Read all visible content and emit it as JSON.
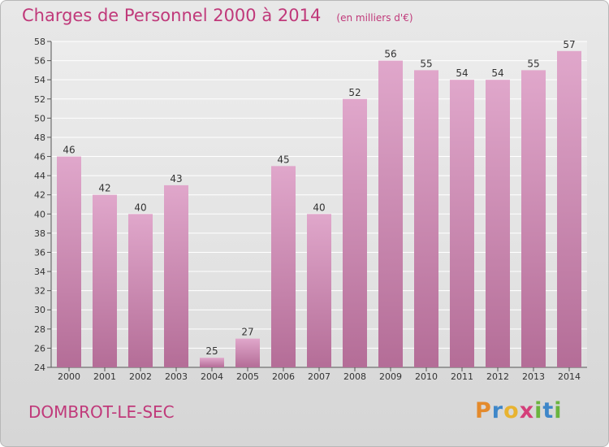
{
  "header": {
    "title": "Charges de Personnel 2000 à 2014",
    "subtitle": "(en milliers d'€)"
  },
  "footer": {
    "commune": "DOMBROT-LE-SEC",
    "logo": "Proxiti"
  },
  "colors": {
    "accent": "#c0397a",
    "bar_top": "#e0a7cb",
    "bar_bottom": "#b46d97",
    "background": "#dcdcdc"
  },
  "chart_data": {
    "type": "bar",
    "categories": [
      "2000",
      "2001",
      "2002",
      "2003",
      "2004",
      "2005",
      "2006",
      "2007",
      "2008",
      "2009",
      "2010",
      "2011",
      "2012",
      "2013",
      "2014"
    ],
    "values": [
      46,
      42,
      40,
      43,
      25,
      27,
      45,
      40,
      52,
      56,
      55,
      54,
      54,
      55,
      57
    ],
    "title": "Charges de Personnel 2000 à 2014",
    "subtitle": "(en milliers d'€)",
    "xlabel": "",
    "ylabel": "",
    "ylim": [
      24,
      58
    ],
    "yticks": [
      24,
      26,
      28,
      30,
      32,
      34,
      36,
      38,
      40,
      42,
      44,
      46,
      48,
      50,
      52,
      54,
      56,
      58
    ],
    "grid": true,
    "data_labels": true
  }
}
